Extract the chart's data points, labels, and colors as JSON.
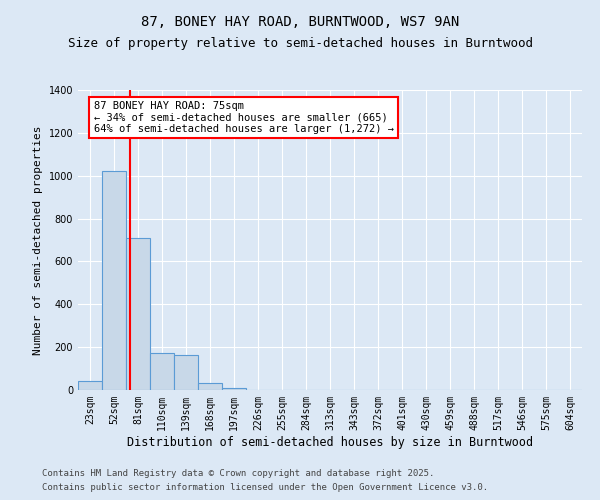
{
  "title1": "87, BONEY HAY ROAD, BURNTWOOD, WS7 9AN",
  "title2": "Size of property relative to semi-detached houses in Burntwood",
  "xlabel": "Distribution of semi-detached houses by size in Burntwood",
  "ylabel": "Number of semi-detached properties",
  "categories": [
    "23sqm",
    "52sqm",
    "81sqm",
    "110sqm",
    "139sqm",
    "168sqm",
    "197sqm",
    "226sqm",
    "255sqm",
    "284sqm",
    "313sqm",
    "343sqm",
    "372sqm",
    "401sqm",
    "430sqm",
    "459sqm",
    "488sqm",
    "517sqm",
    "546sqm",
    "575sqm",
    "604sqm"
  ],
  "values": [
    40,
    1020,
    710,
    175,
    165,
    35,
    10,
    0,
    0,
    0,
    0,
    0,
    0,
    0,
    0,
    0,
    0,
    0,
    0,
    0,
    0
  ],
  "bar_color": "#c8d8e8",
  "bar_edge_color": "#5b9bd5",
  "ylim": [
    0,
    1400
  ],
  "yticks": [
    0,
    200,
    400,
    600,
    800,
    1000,
    1200,
    1400
  ],
  "red_line_x": 1.67,
  "annotation_text": "87 BONEY HAY ROAD: 75sqm\n← 34% of semi-detached houses are smaller (665)\n64% of semi-detached houses are larger (1,272) →",
  "annotation_box_color": "white",
  "annotation_box_edge": "red",
  "footer1": "Contains HM Land Registry data © Crown copyright and database right 2025.",
  "footer2": "Contains public sector information licensed under the Open Government Licence v3.0.",
  "bg_color": "#dce8f5",
  "grid_color": "#ffffff",
  "title1_fontsize": 10,
  "title2_fontsize": 9,
  "tick_fontsize": 7,
  "ylabel_fontsize": 8,
  "xlabel_fontsize": 8.5,
  "footer_fontsize": 6.5
}
